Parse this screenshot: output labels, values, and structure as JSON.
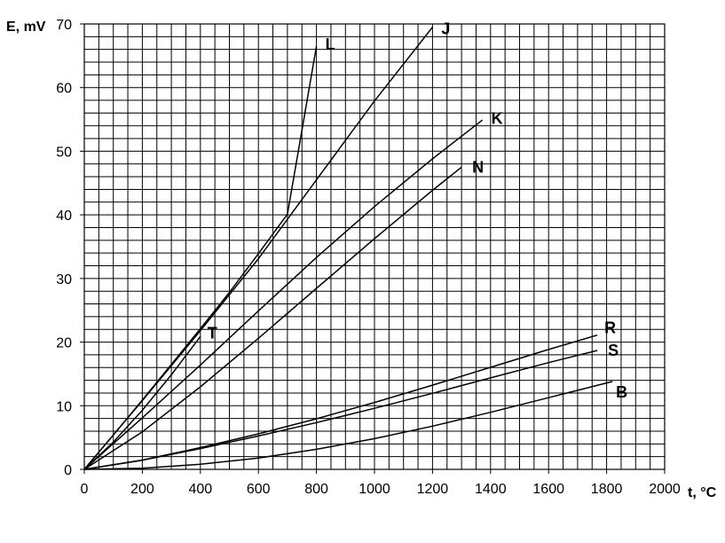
{
  "chart_data": {
    "type": "line",
    "title": "",
    "xlabel": "t, °C",
    "ylabel": "E, mV",
    "xlim": [
      0,
      2000
    ],
    "ylim": [
      0,
      70
    ],
    "xticks": [
      "0",
      "200",
      "400",
      "600",
      "800",
      "1000",
      "1200",
      "1400",
      "1600",
      "1800",
      "2000"
    ],
    "yticks": [
      "0",
      "10",
      "20",
      "30",
      "40",
      "50",
      "60",
      "70"
    ],
    "grid": true,
    "minor_grid": {
      "x_step": 50,
      "y_step": 2
    },
    "colors": {
      "line": "#000000",
      "grid": "#000000",
      "background": "#ffffff"
    },
    "series": [
      {
        "name": "L",
        "x": [
          0,
          100,
          200,
          300,
          400,
          500,
          600,
          700,
          800
        ],
        "y": [
          0,
          5.4,
          10.9,
          16.5,
          22.1,
          27.8,
          33.9,
          40.1,
          66.5
        ]
      },
      {
        "name": "J",
        "x": [
          0,
          200,
          400,
          600,
          800,
          1000,
          1200
        ],
        "y": [
          0,
          10.8,
          21.8,
          33.1,
          45.5,
          57.9,
          69.5
        ]
      },
      {
        "name": "K",
        "x": [
          0,
          200,
          400,
          600,
          800,
          1000,
          1200,
          1372
        ],
        "y": [
          0,
          8.1,
          16.4,
          24.9,
          33.3,
          41.3,
          48.8,
          54.9
        ]
      },
      {
        "name": "N",
        "x": [
          0,
          200,
          400,
          600,
          800,
          1000,
          1200,
          1300
        ],
        "y": [
          0,
          5.9,
          12.97,
          20.6,
          28.45,
          36.26,
          43.85,
          47.5
        ]
      },
      {
        "name": "T",
        "x": [
          0,
          100,
          200,
          300,
          400
        ],
        "y": [
          0,
          4.28,
          9.29,
          14.86,
          20.87
        ]
      },
      {
        "name": "R",
        "x": [
          0,
          200,
          400,
          600,
          800,
          1000,
          1200,
          1400,
          1600,
          1768
        ],
        "y": [
          0,
          1.47,
          3.41,
          5.58,
          7.95,
          10.51,
          13.23,
          16.04,
          18.84,
          21.1
        ]
      },
      {
        "name": "S",
        "x": [
          0,
          200,
          400,
          600,
          800,
          1000,
          1200,
          1400,
          1600,
          1768
        ],
        "y": [
          0,
          1.44,
          3.26,
          5.24,
          7.35,
          9.59,
          11.95,
          14.37,
          16.78,
          18.69
        ]
      },
      {
        "name": "B",
        "x": [
          0,
          200,
          400,
          600,
          800,
          1000,
          1200,
          1400,
          1600,
          1820
        ],
        "y": [
          0,
          0.18,
          0.79,
          1.79,
          3.15,
          4.83,
          6.79,
          8.96,
          11.26,
          13.8
        ]
      }
    ]
  }
}
